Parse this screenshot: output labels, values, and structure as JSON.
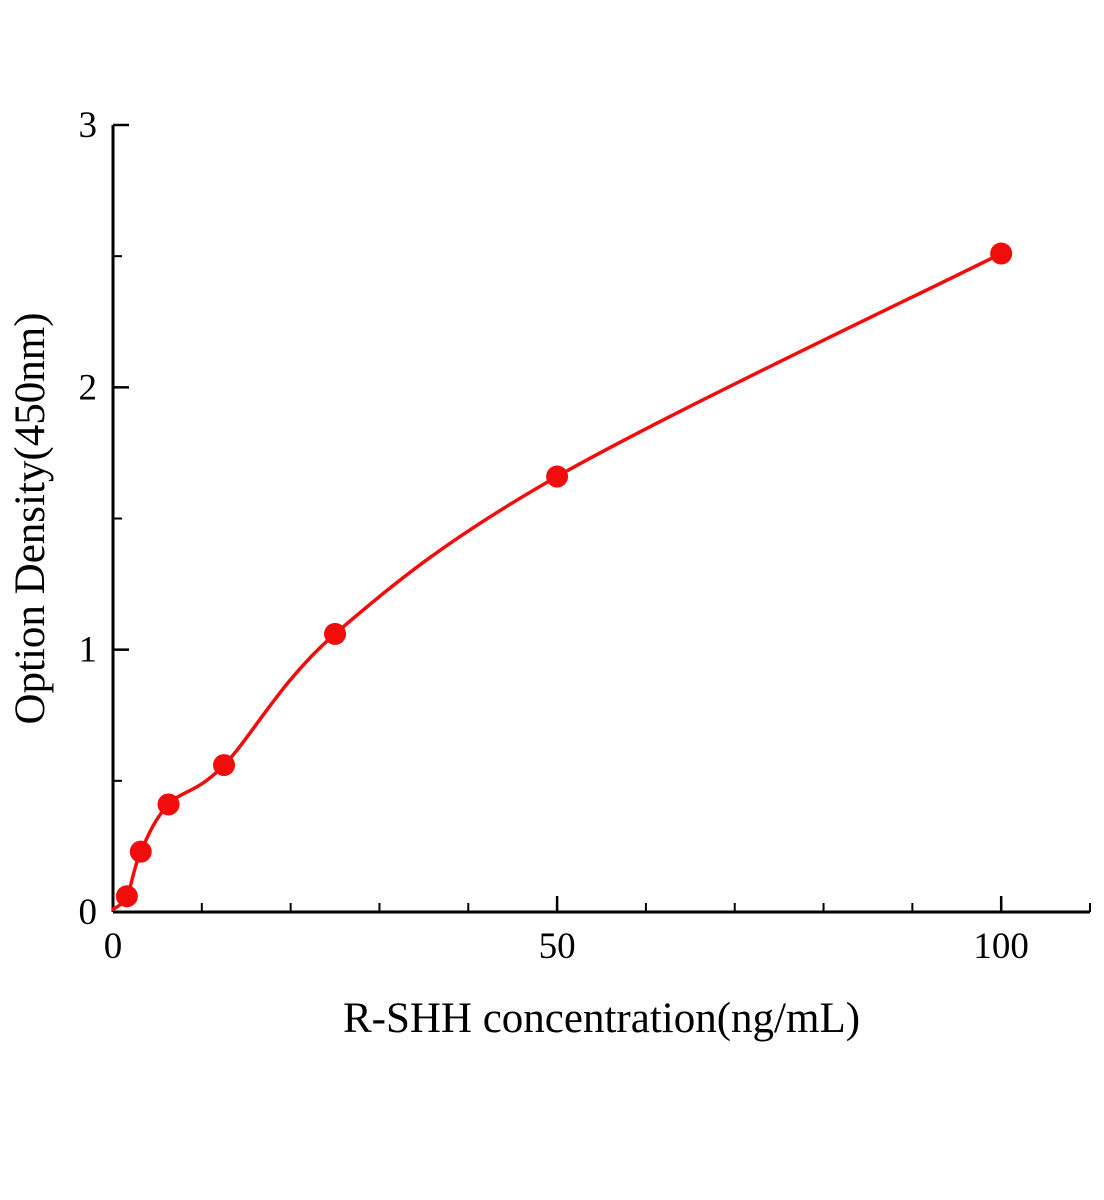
{
  "page": {
    "background": "#ffffff"
  },
  "chart_data": {
    "type": "line",
    "subtype": "scatter-with-fitted-curve",
    "title": "",
    "xlabel": "R-SHH concentration(ng/mL)",
    "ylabel": "Option Density(450nm)",
    "x": [
      1.56,
      3.125,
      6.25,
      12.5,
      25,
      50,
      100
    ],
    "y": [
      0.06,
      0.23,
      0.41,
      0.56,
      1.06,
      1.66,
      2.51
    ],
    "curve_start": {
      "x": 0,
      "y": 0.01
    },
    "xlim": [
      0,
      110
    ],
    "ylim": [
      0,
      3
    ],
    "xticks": [
      0,
      50,
      100
    ],
    "xtick_labels": [
      "0",
      "50",
      "100"
    ],
    "yticks": [
      0,
      1,
      2,
      3
    ],
    "ytick_labels": [
      "0",
      "1",
      "2",
      "3"
    ],
    "x_minor_step": 10,
    "y_minor_step": 0.5,
    "grid": "off",
    "legend": "none",
    "line_color": "#f20d0d",
    "marker_color": "#f20d0d",
    "axis_color": "#000000",
    "marker_radius": 11
  }
}
